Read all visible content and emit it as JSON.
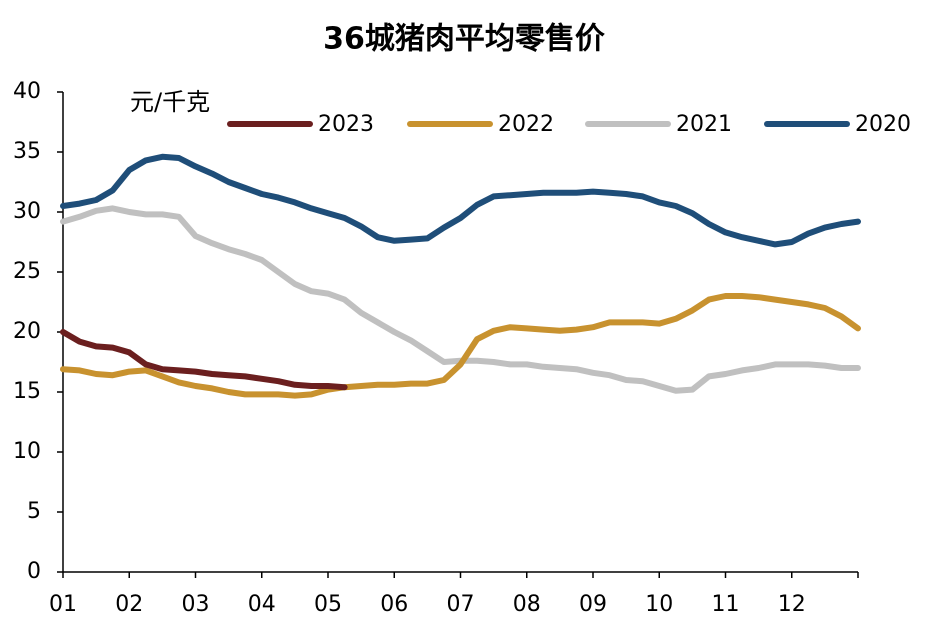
{
  "chart_data": {
    "type": "line",
    "title": "36城猪肉平均零售价",
    "y_label": "元/千克",
    "x": [
      1,
      1.25,
      1.5,
      1.75,
      2,
      2.25,
      2.5,
      2.75,
      3,
      3.25,
      3.5,
      3.75,
      4,
      4.25,
      4.5,
      4.75,
      5,
      5.25,
      5.5,
      5.75,
      6,
      6.25,
      6.5,
      6.75,
      7,
      7.25,
      7.5,
      7.75,
      8,
      8.25,
      8.5,
      8.75,
      9,
      9.25,
      9.5,
      9.75,
      10,
      10.25,
      10.5,
      10.75,
      11,
      11.25,
      11.5,
      11.75,
      12,
      12.25,
      12.5,
      12.75,
      13
    ],
    "xlim": [
      1,
      13
    ],
    "xticks": [
      {
        "value": 1,
        "label": "01"
      },
      {
        "value": 2,
        "label": "02"
      },
      {
        "value": 3,
        "label": "03"
      },
      {
        "value": 4,
        "label": "04"
      },
      {
        "value": 5,
        "label": "05"
      },
      {
        "value": 6,
        "label": "06"
      },
      {
        "value": 7,
        "label": "07"
      },
      {
        "value": 8,
        "label": "08"
      },
      {
        "value": 9,
        "label": "09"
      },
      {
        "value": 10,
        "label": "10"
      },
      {
        "value": 11,
        "label": "11"
      },
      {
        "value": 12,
        "label": "12"
      }
    ],
    "ylim": [
      0,
      40
    ],
    "yticks": [
      0,
      5,
      10,
      15,
      20,
      25,
      30,
      35,
      40
    ],
    "grid": false,
    "series": [
      {
        "name": "2023",
        "color": "#6b1f1f",
        "values": [
          20.0,
          19.2,
          18.8,
          18.7,
          18.3,
          17.3,
          16.9,
          16.8,
          16.7,
          16.5,
          16.4,
          16.3,
          16.1,
          15.9,
          15.6,
          15.5,
          15.5,
          15.4,
          null,
          null,
          null,
          null,
          null,
          null,
          null,
          null,
          null,
          null,
          null,
          null,
          null,
          null,
          null,
          null,
          null,
          null,
          null,
          null,
          null,
          null,
          null,
          null,
          null,
          null,
          null,
          null,
          null,
          null,
          null
        ]
      },
      {
        "name": "2022",
        "color": "#c8922f",
        "values": [
          16.9,
          16.8,
          16.5,
          16.4,
          16.7,
          16.8,
          16.3,
          15.8,
          15.5,
          15.3,
          15.0,
          14.8,
          14.8,
          14.8,
          14.7,
          14.8,
          15.2,
          15.4,
          15.5,
          15.6,
          15.6,
          15.7,
          15.7,
          16.0,
          17.3,
          19.4,
          20.1,
          20.4,
          20.3,
          20.2,
          20.1,
          20.2,
          20.4,
          20.8,
          20.8,
          20.8,
          20.7,
          21.1,
          21.8,
          22.7,
          23.0,
          23.0,
          22.9,
          22.7,
          22.5,
          22.3,
          22.0,
          21.3,
          20.3
        ]
      },
      {
        "name": "2021",
        "color": "#c0c0c0",
        "values": [
          29.2,
          29.6,
          30.1,
          30.3,
          30.0,
          29.8,
          29.8,
          29.6,
          28.0,
          27.4,
          26.9,
          26.5,
          26.0,
          25.0,
          24.0,
          23.4,
          23.2,
          22.7,
          21.6,
          20.8,
          20.0,
          19.3,
          18.4,
          17.5,
          17.6,
          17.6,
          17.5,
          17.3,
          17.3,
          17.1,
          17.0,
          16.9,
          16.6,
          16.4,
          16.0,
          15.9,
          15.5,
          15.1,
          15.2,
          16.3,
          16.5,
          16.8,
          17.0,
          17.3,
          17.3,
          17.3,
          17.2,
          17.0,
          17.0
        ]
      },
      {
        "name": "2020",
        "color": "#1f4e79",
        "values": [
          30.5,
          30.7,
          31.0,
          31.8,
          33.5,
          34.3,
          34.6,
          34.5,
          33.8,
          33.2,
          32.5,
          32.0,
          31.5,
          31.2,
          30.8,
          30.3,
          29.9,
          29.5,
          28.8,
          27.9,
          27.6,
          27.7,
          27.8,
          28.7,
          29.5,
          30.6,
          31.3,
          31.4,
          31.5,
          31.6,
          31.6,
          31.6,
          31.7,
          31.6,
          31.5,
          31.3,
          30.8,
          30.5,
          29.9,
          29.0,
          28.3,
          27.9,
          27.6,
          27.3,
          27.5,
          28.2,
          28.7,
          29.0,
          29.2
        ]
      }
    ]
  }
}
